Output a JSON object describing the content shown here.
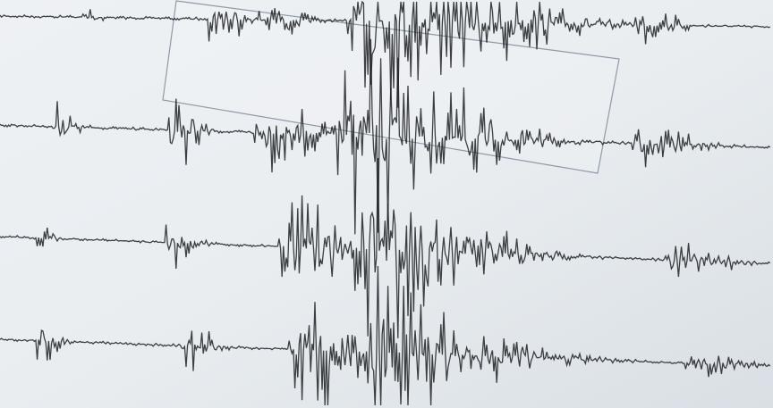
{
  "photo": {
    "subject": "seismograph",
    "colors": {
      "paper_light": "#f1f3f5",
      "paper_shadow": "#d5dbe1",
      "ink": "#1f2124",
      "frame": "#8f9aa8"
    },
    "trace_count": 4
  }
}
